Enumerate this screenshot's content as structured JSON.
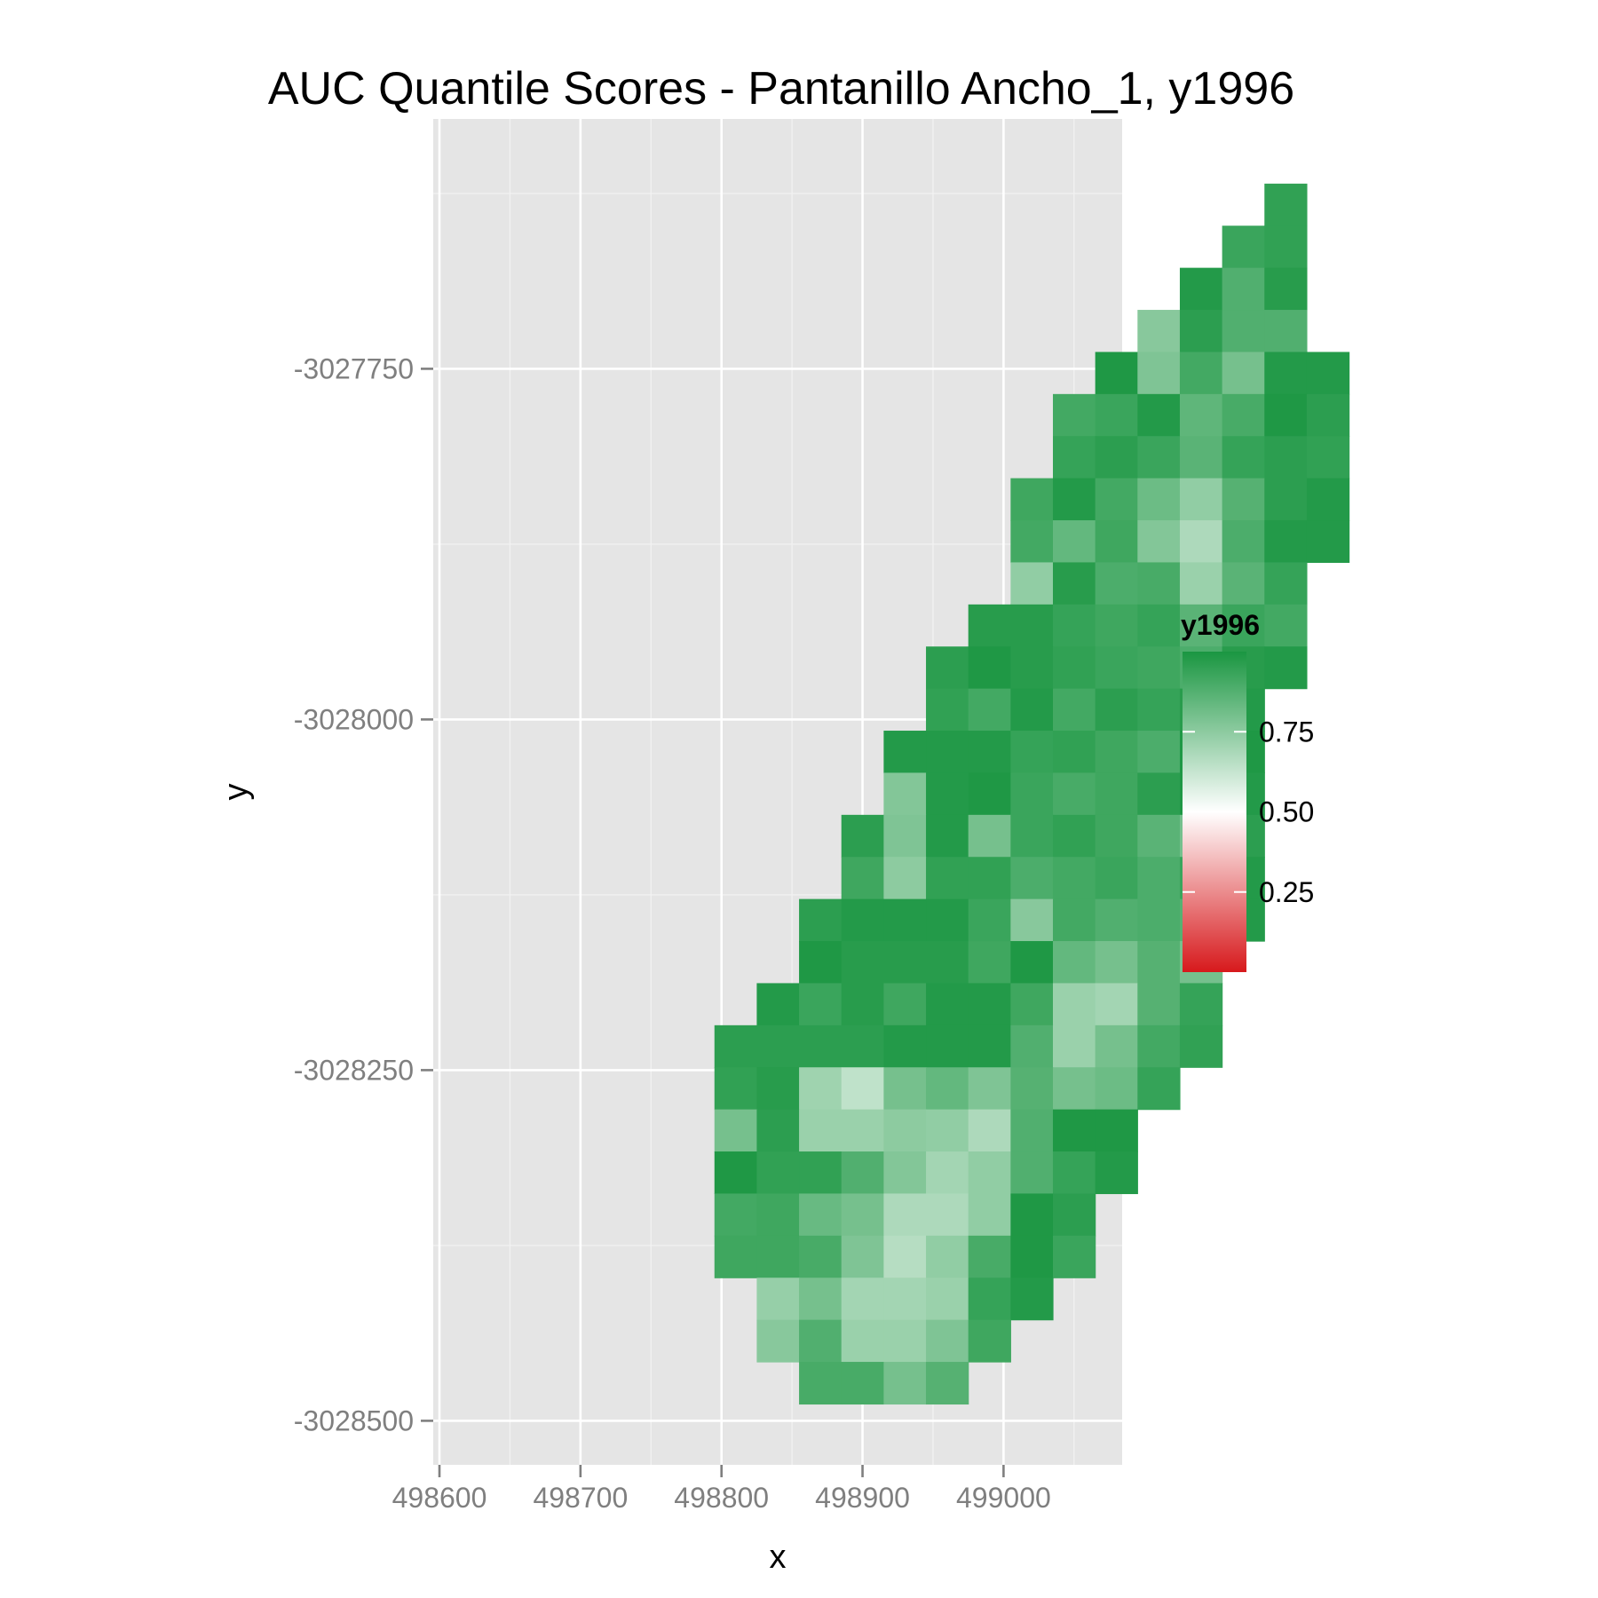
{
  "chart_data": {
    "type": "heatmap",
    "title": "AUC Quantile Scores - Pantanillo Ancho_1, y1996",
    "xlabel": "x",
    "ylabel": "y",
    "xlim": [
      498593,
      498893
    ],
    "ylim": [
      -3028528,
      -3027588
    ],
    "x_ticks": [
      498600,
      498700,
      498800,
      498900,
      499000
    ],
    "x_tick_labels": [
      "498600",
      "498700",
      "498800",
      "498900",
      "499000"
    ],
    "y_ticks": [
      -3027750,
      -3028000,
      -3028250,
      -3028500
    ],
    "y_tick_labels": [
      "-3027750",
      "-3028000",
      "-3028250",
      "-3028500"
    ],
    "cell_size": 30,
    "x_start": 498630,
    "y_start": -3027633,
    "grid": true,
    "legend": {
      "title": "y1996",
      "position": "right",
      "breaks": [
        0.75,
        0.5,
        0.25
      ],
      "break_labels": [
        "0.75",
        "0.50",
        "0.25"
      ],
      "range": [
        0,
        1
      ],
      "colors": {
        "low": "#d7191c",
        "mid": "#ffffff",
        "high": "#1a9641"
      }
    },
    "row_data": [
      {
        "start": 19,
        "values": [
          0.95
        ]
      },
      {
        "start": 18,
        "values": [
          0.93,
          0.95
        ]
      },
      {
        "start": 17,
        "values": [
          0.98,
          0.88,
          0.97
        ]
      },
      {
        "start": 16,
        "values": [
          0.76,
          0.96,
          0.88,
          0.88
        ]
      },
      {
        "start": 15,
        "values": [
          0.99,
          0.78,
          0.91,
          0.8,
          0.98,
          0.98
        ]
      },
      {
        "start": 14,
        "values": [
          0.91,
          0.93,
          0.98,
          0.85,
          0.9,
          0.99,
          0.96
        ]
      },
      {
        "start": 14,
        "values": [
          0.94,
          0.96,
          0.93,
          0.86,
          0.94,
          0.96,
          0.95
        ]
      },
      {
        "start": 13,
        "values": [
          0.92,
          0.98,
          0.91,
          0.82,
          0.74,
          0.87,
          0.96,
          0.98
        ]
      },
      {
        "start": 13,
        "values": [
          0.91,
          0.84,
          0.92,
          0.77,
          0.68,
          0.89,
          0.98,
          0.98
        ]
      },
      {
        "start": 13,
        "values": [
          0.74,
          0.97,
          0.89,
          0.9,
          0.72,
          0.86,
          0.94
        ]
      },
      {
        "start": 12,
        "values": [
          0.97,
          0.97,
          0.94,
          0.92,
          0.94,
          0.86,
          0.93,
          0.91
        ]
      },
      {
        "start": 11,
        "values": [
          0.96,
          0.99,
          0.97,
          0.95,
          0.93,
          0.92,
          0.89,
          0.97,
          0.98
        ]
      },
      {
        "start": 11,
        "values": [
          0.95,
          0.91,
          0.98,
          0.91,
          0.96,
          0.94,
          0.97,
          0.98
        ]
      },
      {
        "start": 10,
        "values": [
          0.98,
          0.98,
          0.98,
          0.94,
          0.95,
          0.92,
          0.89,
          0.99,
          0.99
        ]
      },
      {
        "start": 10,
        "values": [
          0.77,
          0.98,
          0.99,
          0.93,
          0.9,
          0.92,
          0.96,
          0.99,
          0.98
        ]
      },
      {
        "start": 9,
        "values": [
          0.96,
          0.78,
          0.98,
          0.8,
          0.93,
          0.95,
          0.92,
          0.86,
          0.8,
          0.96
        ]
      },
      {
        "start": 9,
        "values": [
          0.92,
          0.75,
          0.95,
          0.95,
          0.89,
          0.91,
          0.93,
          0.89,
          0.93,
          0.98
        ]
      },
      {
        "start": 8,
        "values": [
          0.96,
          0.98,
          0.98,
          0.98,
          0.93,
          0.76,
          0.91,
          0.88,
          0.89,
          0.87,
          0.98
        ]
      },
      {
        "start": 8,
        "values": [
          0.99,
          0.97,
          0.97,
          0.97,
          0.92,
          0.99,
          0.84,
          0.8,
          0.87,
          0.8
        ]
      },
      {
        "start": 7,
        "values": [
          0.98,
          0.93,
          0.97,
          0.92,
          0.98,
          0.98,
          0.92,
          0.72,
          0.7,
          0.87,
          0.94
        ]
      },
      {
        "start": 6,
        "values": [
          0.96,
          0.96,
          0.96,
          0.96,
          0.98,
          0.98,
          0.98,
          0.88,
          0.72,
          0.8,
          0.91,
          0.95
        ]
      },
      {
        "start": 6,
        "values": [
          0.95,
          0.97,
          0.71,
          0.64,
          0.8,
          0.84,
          0.78,
          0.87,
          0.8,
          0.82,
          0.94
        ]
      },
      {
        "start": 6,
        "values": [
          0.8,
          0.96,
          0.72,
          0.72,
          0.75,
          0.74,
          0.68,
          0.88,
          0.99,
          0.99
        ]
      },
      {
        "start": 6,
        "values": [
          0.99,
          0.95,
          0.95,
          0.88,
          0.77,
          0.7,
          0.74,
          0.88,
          0.94,
          0.98
        ]
      },
      {
        "start": 6,
        "values": [
          0.91,
          0.92,
          0.83,
          0.8,
          0.68,
          0.68,
          0.74,
          0.99,
          0.96
        ]
      },
      {
        "start": 6,
        "values": [
          0.92,
          0.92,
          0.9,
          0.78,
          0.66,
          0.74,
          0.9,
          0.99,
          0.93
        ]
      },
      {
        "start": 7,
        "values": [
          0.73,
          0.8,
          0.7,
          0.7,
          0.72,
          0.94,
          0.98
        ]
      },
      {
        "start": 7,
        "values": [
          0.76,
          0.88,
          0.72,
          0.72,
          0.78,
          0.92
        ]
      },
      {
        "start": 8,
        "values": [
          0.9,
          0.9,
          0.8,
          0.87
        ]
      }
    ]
  }
}
